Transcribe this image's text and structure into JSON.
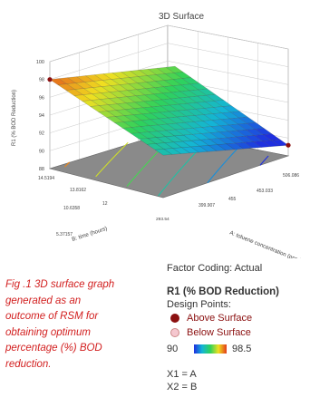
{
  "chart_data": {
    "type": "surface3d",
    "title": "3D Surface",
    "zlabel": "R1 (% BOD Reduction)",
    "xlabel": "A: toluene concentration (ppm)",
    "ylabel": "B: time (hours)",
    "x_ticks": [
      "399.907",
      "453.033",
      "506.086"
    ],
    "y_ticks": [
      "5.37157",
      "10.6358",
      "13.8162",
      "14.5194"
    ],
    "x_center_tick": "455",
    "y_center_tick": "12",
    "y_corner_tick": "293.54",
    "z_ticks": [
      "88",
      "90",
      "92",
      "94",
      "96",
      "98",
      "100"
    ],
    "zlim": [
      88,
      100
    ],
    "design_points": [
      {
        "x_frac": 0,
        "y_frac": 1,
        "z": 98.0
      },
      {
        "x_frac": 1,
        "y_frac": 0,
        "z": 89.2
      }
    ],
    "color_scale": {
      "low": 90,
      "high": 98.5
    }
  },
  "caption": {
    "lines": [
      "Fig .1 3D surface graph",
      "generated as an",
      "outcome of RSM for",
      "obtaining optimum",
      "percentage (%) BOD",
      "reduction."
    ]
  },
  "legend": {
    "factor_coding": "Factor Coding: Actual",
    "response_title": "R1 (% BOD Reduction)",
    "design_points_label": "Design Points:",
    "above_label": "Above Surface",
    "below_label": "Below Surface",
    "scale_low": "90",
    "scale_high": "98.5",
    "x1": "X1 = A",
    "x2": "X2 = B"
  },
  "colors": {
    "caption_red": "#d21f1f",
    "point_red": "#8b1010",
    "floor_gray": "#8a8a8a"
  }
}
